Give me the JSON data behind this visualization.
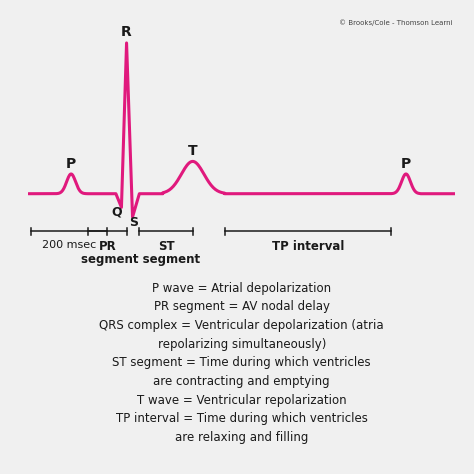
{
  "bg_ecg": "#ddeef5",
  "bg_legend": "#f5f0d5",
  "bg_outer": "#f0f0f0",
  "ecg_color": "#e0197d",
  "ecg_linewidth": 2.2,
  "text_color": "#1a1a1a",
  "copyright": "© Brooks/Cole - Thomson Learni",
  "label_P1": "P",
  "label_R": "R",
  "label_Q": "Q",
  "label_S": "S",
  "label_T": "T",
  "label_P2": "P",
  "label_200msec": "200 msec",
  "label_PR": "PR",
  "label_ST": "ST",
  "label_segment_row": "segment segment",
  "label_TP": "TP interval",
  "legend_lines": [
    [
      "P wave = Atrial depolarization",
      "center"
    ],
    [
      "PR segment = AV nodal delay",
      "center"
    ],
    [
      "QRS complex = Ventricular depolarization (atria",
      "center"
    ],
    [
      "repolarizing simultaneously)",
      "center"
    ],
    [
      "ST segment = Time during which ventricles",
      "center"
    ],
    [
      "are contracting and emptying",
      "center"
    ],
    [
      "T wave = Ventricular repolarization",
      "center"
    ],
    [
      "TP interval = Time during which ventricles",
      "center"
    ],
    [
      "are relaxing and filling",
      "center"
    ]
  ]
}
